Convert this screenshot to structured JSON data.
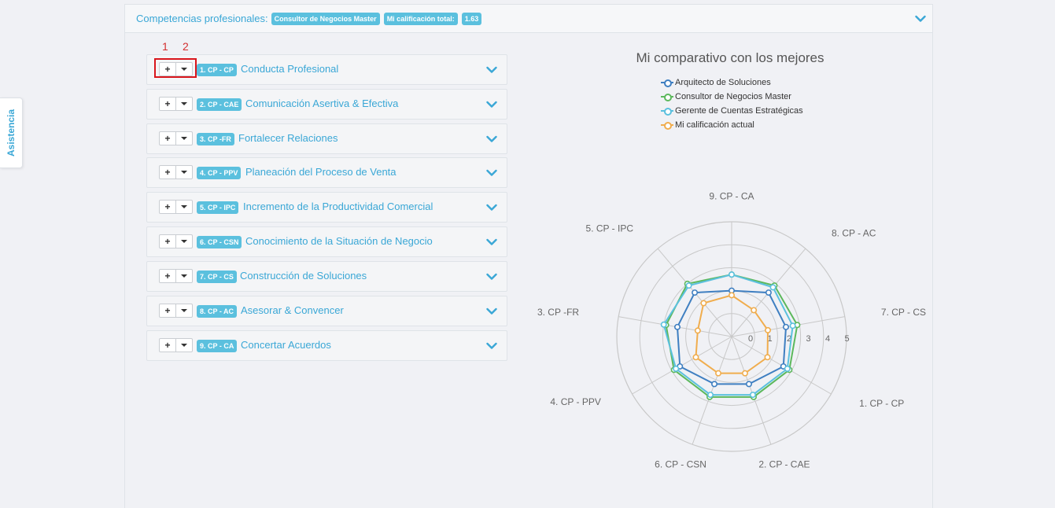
{
  "sidebar_tab": {
    "label": "Asistencia"
  },
  "header": {
    "title": "Competencias profesionales:",
    "badges": [
      "Consultor de Negocios Master",
      "Mi calificación total:",
      "1.63"
    ]
  },
  "annotations": [
    "1",
    "2"
  ],
  "competencies": [
    {
      "code": "1. CP - CP",
      "title": "Conducta Profesional"
    },
    {
      "code": "2. CP - CAE",
      "title": "Comunicación Asertiva & Efectiva"
    },
    {
      "code": "3. CP -FR",
      "title": "Fortalecer Relaciones"
    },
    {
      "code": "4. CP - PPV",
      "title": "Planeación del Proceso de Venta"
    },
    {
      "code": "5. CP - IPC",
      "title": "Incremento de la Productividad Comercial"
    },
    {
      "code": "6. CP - CSN",
      "title": "Conocimiento de la Situación de Negocio"
    },
    {
      "code": "7. CP - CS",
      "title": "Construcción de Soluciones"
    },
    {
      "code": "8. CP - AC",
      "title": "Asesorar & Convencer"
    },
    {
      "code": "9. CP - CA",
      "title": "Concertar Acuerdos"
    }
  ],
  "icons": {
    "expand": "chevron-down-icon",
    "add": "plus-icon",
    "menu": "caret-down-icon"
  },
  "chart_data": {
    "type": "radar",
    "title": "Mi comparativo con los mejores",
    "categories": [
      "9. CP - CA",
      "8. CP - AC",
      "7. CP - CS",
      "1. CP - CP",
      "2. CP - CAE",
      "6. CP - CSN",
      "4. CP - PPV",
      "3. CP -FR",
      "5. CP - IPC"
    ],
    "rlim": [
      0,
      5
    ],
    "ticks": [
      "0",
      "1",
      "2",
      "3",
      "4",
      "5"
    ],
    "legend_position": "top",
    "series": [
      {
        "name": "Arquitecto de Soluciones",
        "color": "#3f7fc1",
        "values": [
          2.0,
          2.5,
          2.4,
          2.6,
          2.2,
          2.2,
          2.6,
          2.4,
          2.5
        ]
      },
      {
        "name": "Consultor de Negocios Master",
        "color": "#5cb85c",
        "values": [
          2.7,
          2.9,
          2.9,
          2.9,
          2.8,
          2.8,
          2.9,
          2.9,
          3.0
        ]
      },
      {
        "name": "Gerente de Cuentas Estratégicas",
        "color": "#5bc0de",
        "values": [
          2.7,
          2.8,
          2.7,
          2.8,
          2.7,
          2.7,
          2.8,
          3.0,
          2.9
        ]
      },
      {
        "name": "Mi calificación actual",
        "color": "#f0ad4e",
        "values": [
          1.8,
          1.5,
          1.6,
          1.8,
          1.7,
          1.7,
          1.8,
          1.5,
          1.9
        ]
      }
    ]
  }
}
